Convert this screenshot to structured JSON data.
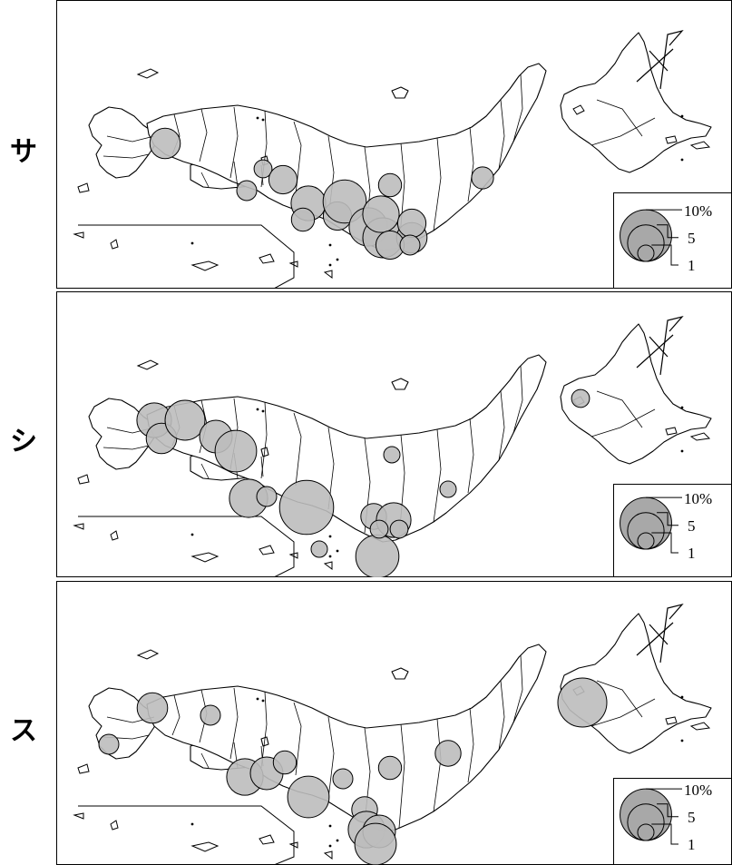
{
  "colors": {
    "land_outline": "#000000",
    "circle_fill": "#bdbdbd",
    "legend_fill": "#a8a8a8"
  },
  "icons": {
    "north_arrow": "north-arrow-icon"
  },
  "panels": [
    {
      "label": "サ",
      "legend": {
        "large": "10%",
        "medium": "5",
        "small": "1"
      },
      "circles": [
        {
          "region": "n-kyushu",
          "value": 3.5
        },
        {
          "region": "chugoku-east",
          "value": 1.2
        },
        {
          "region": "shikoku-north",
          "value": 1.5
        },
        {
          "region": "kansai-north",
          "value": 3.0
        },
        {
          "region": "osaka",
          "value": 4.5
        },
        {
          "region": "kinki-south",
          "value": 2.0
        },
        {
          "region": "hokuriku",
          "value": 2.0
        },
        {
          "region": "kii",
          "value": 3.0
        },
        {
          "region": "chubu-west",
          "value": 7.0
        },
        {
          "region": "chubu-south",
          "value": 5.5
        },
        {
          "region": "kanto-center",
          "value": 6.0
        },
        {
          "region": "kanto-south",
          "value": 3.5
        },
        {
          "region": "tokyo",
          "value": 5.0
        },
        {
          "region": "kanto-north",
          "value": 3.0
        },
        {
          "region": "niigata",
          "value": 3.0
        },
        {
          "region": "tohoku-east",
          "value": 1.8
        },
        {
          "region": "izu",
          "value": 1.5
        }
      ]
    },
    {
      "label": "シ",
      "legend": {
        "large": "10%",
        "medium": "5",
        "small": "1"
      },
      "circles": [
        {
          "region": "n-kyushu-west",
          "value": 4.5
        },
        {
          "region": "n-kyushu-east",
          "value": 3.5
        },
        {
          "region": "chugoku-west",
          "value": 6.0
        },
        {
          "region": "shikoku-west",
          "value": 4.0
        },
        {
          "region": "chugoku-east",
          "value": 6.5
        },
        {
          "region": "shikoku-east",
          "value": 5.5
        },
        {
          "region": "kinki",
          "value": 1.5
        },
        {
          "region": "osaka",
          "value": 11.0
        },
        {
          "region": "kii",
          "value": 1.0
        },
        {
          "region": "chubu",
          "value": 2.5
        },
        {
          "region": "kanto-south",
          "value": 4.5
        },
        {
          "region": "kanto-north",
          "value": 1.2
        },
        {
          "region": "tokyo",
          "value": 7.0
        },
        {
          "region": "kanto-east",
          "value": 1.2
        },
        {
          "region": "hokuriku",
          "value": 1.0
        },
        {
          "region": "tohoku",
          "value": 1.0
        },
        {
          "region": "hokkaido",
          "value": 1.2
        }
      ]
    },
    {
      "label": "ス",
      "legend": {
        "large": "10%",
        "medium": "5",
        "small": "1"
      },
      "circles": [
        {
          "region": "kyushu-south",
          "value": 1.5
        },
        {
          "region": "n-kyushu",
          "value": 3.5
        },
        {
          "region": "chugoku-west",
          "value": 1.5
        },
        {
          "region": "chugoku-east",
          "value": 5.0
        },
        {
          "region": "shikoku",
          "value": 4.0
        },
        {
          "region": "kinki-north",
          "value": 2.0
        },
        {
          "region": "osaka",
          "value": 6.5
        },
        {
          "region": "kinki-east",
          "value": 1.5
        },
        {
          "region": "chubu",
          "value": 2.5
        },
        {
          "region": "kanto-1",
          "value": 5.0
        },
        {
          "region": "kanto-2",
          "value": 4.0
        },
        {
          "region": "tokyo",
          "value": 6.5
        },
        {
          "region": "hokuriku",
          "value": 2.0
        },
        {
          "region": "tohoku",
          "value": 2.5
        },
        {
          "region": "hokkaido",
          "value": 9.0
        }
      ]
    }
  ]
}
